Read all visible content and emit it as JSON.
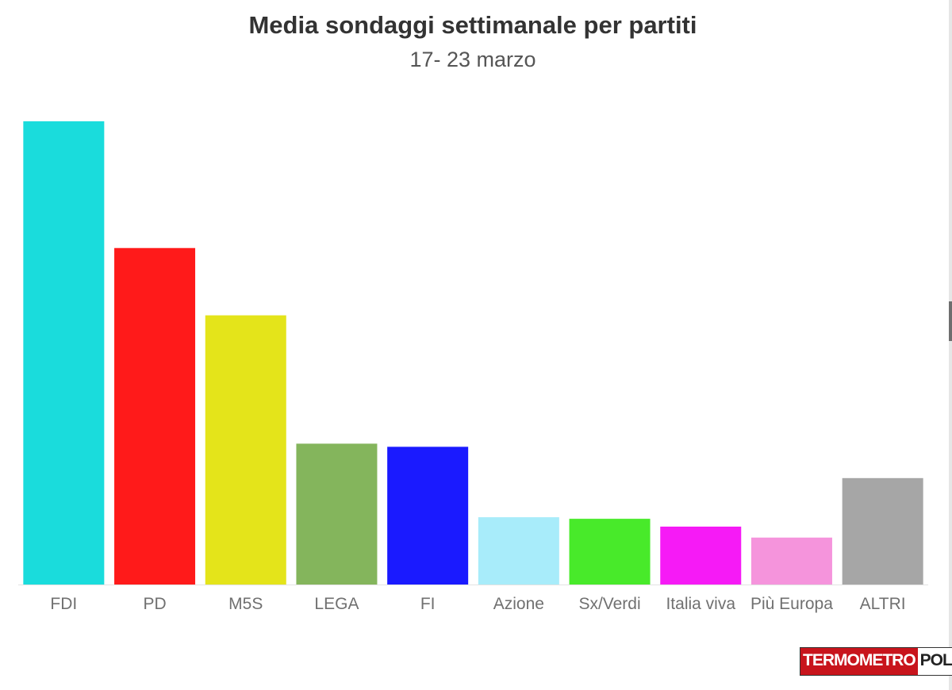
{
  "chart_data": {
    "type": "bar",
    "title": "Media sondaggi settimanale per partiti",
    "subtitle": "17- 23 marzo",
    "xlabel": "",
    "ylabel": "",
    "categories": [
      "FDI",
      "PD",
      "M5S",
      "LEGA",
      "FI",
      "Azione",
      "Sx/Verdi",
      "Italia viva",
      "Più Europa",
      "ALTRI"
    ],
    "values": [
      29.6,
      21.5,
      17.2,
      9.0,
      8.8,
      4.3,
      4.2,
      3.7,
      3.0,
      6.8
    ],
    "colors": [
      "#1adcdc",
      "#ff1a1a",
      "#e4e41a",
      "#84b55c",
      "#1a1aff",
      "#a8ecfa",
      "#48ea2a",
      "#f61af6",
      "#f594dc",
      "#a6a6a6"
    ],
    "ylim": [
      0,
      30
    ],
    "grid": false,
    "legend": "none"
  },
  "logo": {
    "part1": "TERMOMETRO",
    "part2": "POLITICO"
  }
}
